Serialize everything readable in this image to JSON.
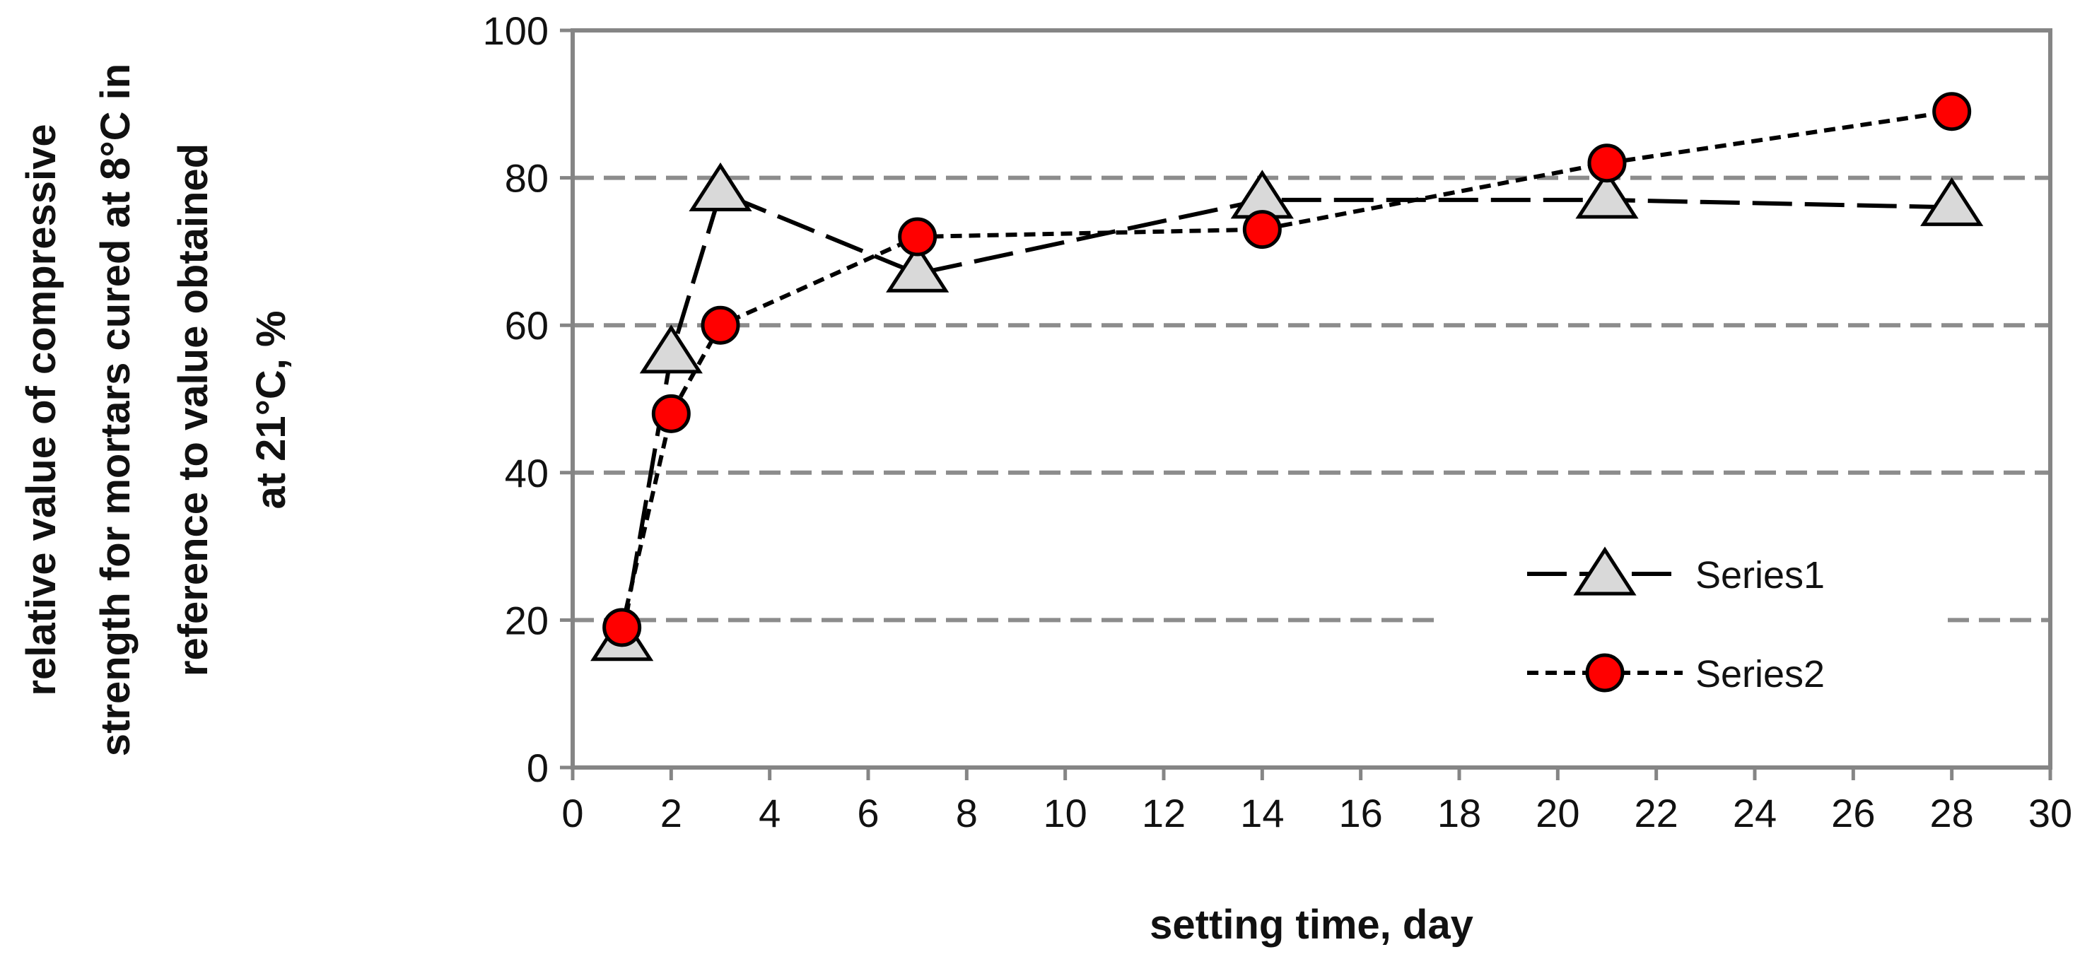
{
  "chart_data": {
    "type": "line",
    "xlabel": "setting time, day",
    "ylabel_lines": [
      "relative value of compressive",
      "strength for mortars cured at 8°C in",
      "reference to value obtained",
      "at 21°C, %"
    ],
    "xlim": [
      0,
      30
    ],
    "ylim": [
      0,
      100
    ],
    "x_ticks": [
      "0",
      "2",
      "4",
      "6",
      "8",
      "10",
      "12",
      "14",
      "16",
      "18",
      "20",
      "22",
      "24",
      "26",
      "28",
      "30"
    ],
    "y_ticks": [
      "0",
      "20",
      "40",
      "60",
      "80",
      "100"
    ],
    "grid": "horizontal dashed",
    "legend_position": "lower-right",
    "x": [
      1,
      2,
      3,
      7,
      14,
      21,
      28
    ],
    "series": [
      {
        "name": "Series1",
        "values": [
          17,
          56,
          78,
          67,
          77,
          77,
          76
        ],
        "marker": "triangle",
        "line_style": "long-dash",
        "color": "#d9d9d9"
      },
      {
        "name": "Series2",
        "values": [
          19,
          48,
          60,
          72,
          73,
          82,
          89
        ],
        "marker": "circle",
        "line_style": "short-dash",
        "color": "#ff0000"
      }
    ]
  }
}
